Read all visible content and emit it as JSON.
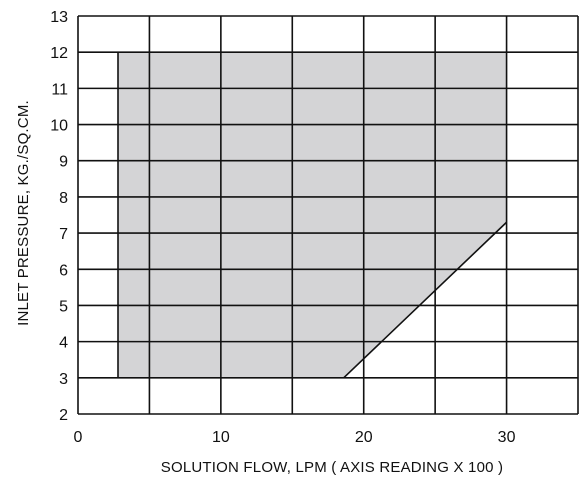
{
  "chart_data": {
    "type": "area",
    "xlabel": "SOLUTION FLOW, LPM ( AXIS READING X 100 )",
    "ylabel": "INLET PRESSURE, KG./SQ.CM.",
    "xlim": [
      0,
      35
    ],
    "ylim": [
      2,
      13
    ],
    "x_ticks": [
      0,
      10,
      20,
      30
    ],
    "y_ticks": [
      2,
      3,
      4,
      5,
      6,
      7,
      8,
      9,
      10,
      11,
      12,
      13
    ],
    "grid": true,
    "x_gridlines": [
      0,
      5,
      10,
      15,
      20,
      25,
      30,
      35
    ],
    "y_gridlines": [
      2,
      3,
      4,
      5,
      6,
      7,
      8,
      9,
      10,
      11,
      12,
      13
    ],
    "region": {
      "polygon": [
        [
          2.8,
          3
        ],
        [
          2.8,
          12
        ],
        [
          30,
          12
        ],
        [
          30,
          7.3
        ],
        [
          18.6,
          3
        ]
      ],
      "fill": "#d4d4d6",
      "edge_color": "#111111"
    }
  }
}
